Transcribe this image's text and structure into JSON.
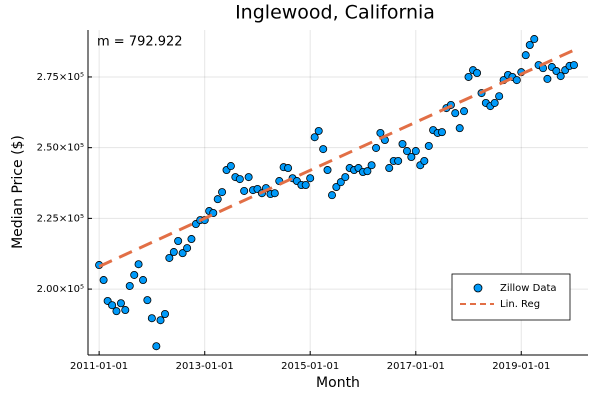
{
  "chart_data": {
    "type": "scatter",
    "title": "Inglewood, California",
    "xlabel": "Month",
    "ylabel": "Median Price ($)",
    "annotation": "m = 792.922",
    "xlim": [
      "2010-10-16",
      "2020-04-07"
    ],
    "xticks": [
      "2011-01-01",
      "2013-01-01",
      "2015-01-01",
      "2017-01-01",
      "2019-01-01"
    ],
    "ylim": [
      176700,
      291600
    ],
    "yticks": [
      {
        "value": 200000,
        "label": "2.00×10⁵"
      },
      {
        "value": 225000,
        "label": "2.25×10⁵"
      },
      {
        "value": 250000,
        "label": "2.50×10⁵"
      },
      {
        "value": 275000,
        "label": "2.75×10⁵"
      }
    ],
    "grid": true,
    "legend_position": "bottom right",
    "series": [
      {
        "name": "Zillow Data",
        "type": "scatter",
        "color": "#009af9",
        "x": [
          "2011-01-01",
          "2011-02-01",
          "2011-03-01",
          "2011-04-01",
          "2011-05-01",
          "2011-06-01",
          "2011-07-01",
          "2011-08-01",
          "2011-09-01",
          "2011-10-01",
          "2011-11-01",
          "2011-12-01",
          "2012-01-01",
          "2012-02-01",
          "2012-03-01",
          "2012-04-01",
          "2012-05-01",
          "2012-06-01",
          "2012-07-01",
          "2012-08-01",
          "2012-09-01",
          "2012-10-01",
          "2012-11-01",
          "2012-12-01",
          "2013-01-01",
          "2013-02-01",
          "2013-03-01",
          "2013-04-01",
          "2013-05-01",
          "2013-06-01",
          "2013-07-01",
          "2013-08-01",
          "2013-09-01",
          "2013-10-01",
          "2013-11-01",
          "2013-12-01",
          "2014-01-01",
          "2014-02-01",
          "2014-03-01",
          "2014-04-01",
          "2014-05-01",
          "2014-06-01",
          "2014-07-01",
          "2014-08-01",
          "2014-09-01",
          "2014-10-01",
          "2014-11-01",
          "2014-12-01",
          "2015-01-01",
          "2015-02-01",
          "2015-03-01",
          "2015-04-01",
          "2015-05-01",
          "2015-06-01",
          "2015-07-01",
          "2015-08-01",
          "2015-09-01",
          "2015-10-01",
          "2015-11-01",
          "2015-12-01",
          "2016-01-01",
          "2016-02-01",
          "2016-03-01",
          "2016-04-01",
          "2016-05-01",
          "2016-06-01",
          "2016-07-01",
          "2016-08-01",
          "2016-09-01",
          "2016-10-01",
          "2016-11-01",
          "2016-12-01",
          "2017-01-01",
          "2017-02-01",
          "2017-03-01",
          "2017-04-01",
          "2017-05-01",
          "2017-06-01",
          "2017-07-01",
          "2017-08-01",
          "2017-09-01",
          "2017-10-01",
          "2017-11-01",
          "2017-12-01",
          "2018-01-01",
          "2018-02-01",
          "2018-03-01",
          "2018-04-01",
          "2018-05-01",
          "2018-06-01",
          "2018-07-01",
          "2018-08-01",
          "2018-09-01",
          "2018-10-01",
          "2018-11-01",
          "2018-12-01",
          "2019-01-01",
          "2019-02-01",
          "2019-03-01",
          "2019-04-01",
          "2019-05-01",
          "2019-06-01",
          "2019-07-01",
          "2019-08-01",
          "2019-09-01",
          "2019-10-01",
          "2019-11-01",
          "2019-12-01",
          "2020-01-01"
        ],
        "values": [
          208500,
          203200,
          195800,
          194300,
          192200,
          195000,
          192600,
          201100,
          205000,
          208800,
          203200,
          196100,
          189700,
          179800,
          189000,
          191200,
          211000,
          213100,
          217000,
          212700,
          214500,
          217700,
          223000,
          224400,
          224400,
          227600,
          226900,
          231800,
          234300,
          242100,
          243500,
          239600,
          238900,
          234700,
          239600,
          235000,
          235400,
          233900,
          235700,
          233600,
          233900,
          238200,
          243100,
          242800,
          239200,
          238200,
          236800,
          236800,
          239200,
          253700,
          255900,
          249500,
          242100,
          233200,
          236100,
          237800,
          239600,
          242800,
          242100,
          242800,
          241400,
          241700,
          243800,
          249900,
          255200,
          252700,
          242800,
          245300,
          245300,
          251300,
          248800,
          246700,
          248800,
          243800,
          245300,
          250600,
          256200,
          255200,
          255500,
          264000,
          265100,
          262200,
          256900,
          262900,
          275000,
          277400,
          276400,
          269300,
          265800,
          264700,
          265800,
          268200,
          273900,
          275700,
          275000,
          273900,
          276700,
          282700,
          286300,
          288400,
          279200,
          278100,
          274300,
          278500,
          277100,
          275300,
          277400,
          278900,
          279200
        ]
      },
      {
        "name": "Lin. Reg",
        "type": "line",
        "color": "#e26f46",
        "dash": true,
        "x": [
          "2011-01-01",
          "2020-01-01"
        ],
        "values": [
          208000,
          284500
        ]
      }
    ]
  }
}
